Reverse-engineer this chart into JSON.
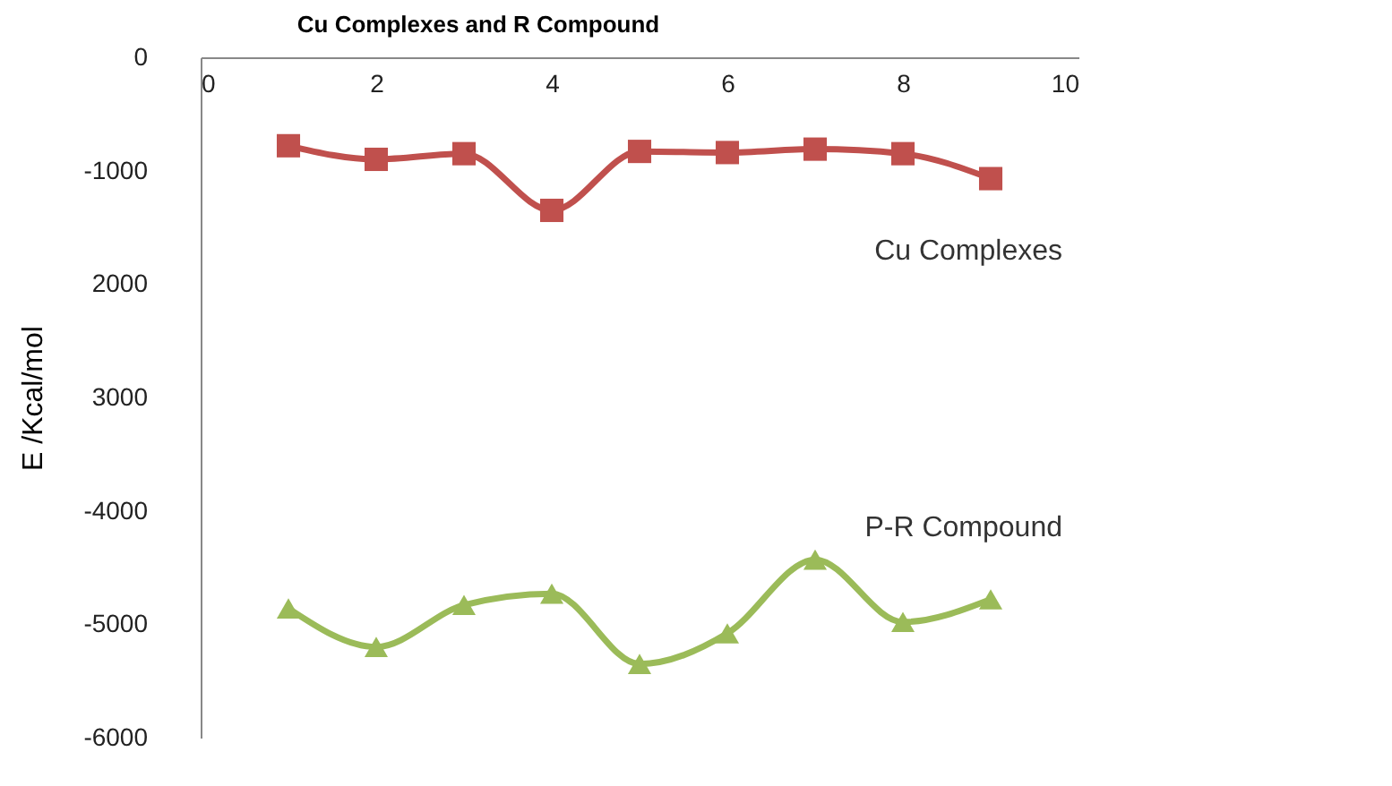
{
  "chart_data": {
    "type": "line",
    "title": "Cu Complexes and R Compound",
    "ylabel": "E /Kcal/mol",
    "x": [
      1,
      2,
      3,
      4,
      5,
      6,
      7,
      8,
      9
    ],
    "series": [
      {
        "name": "Cu Complexes",
        "color": "#c0504d",
        "marker": "square",
        "values": [
          -780,
          -900,
          -850,
          -1350,
          -830,
          -840,
          -810,
          -850,
          -1070
        ]
      },
      {
        "name": "P-R Compound",
        "color": "#9bbb59",
        "marker": "triangle",
        "values": [
          -4860,
          -5200,
          -4830,
          -4730,
          -5350,
          -5080,
          -4430,
          -4980,
          -4780
        ]
      }
    ],
    "xlim": [
      0,
      10
    ],
    "xticks": [
      0,
      2,
      4,
      6,
      8,
      10
    ],
    "ylim": [
      -6000,
      0
    ],
    "yticks": [
      0,
      -1000,
      {
        "value": -2000,
        "label": "2000"
      },
      {
        "value": -3000,
        "label": "3000"
      },
      -4000,
      -5000,
      -6000
    ],
    "grid": false
  }
}
